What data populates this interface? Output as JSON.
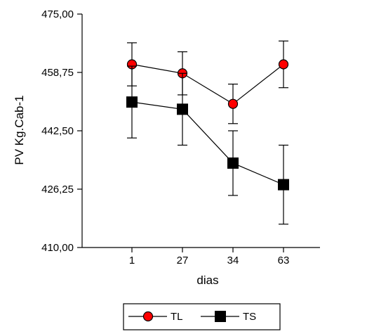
{
  "chart_data": {
    "type": "line",
    "title": "",
    "xlabel": "dias",
    "ylabel": "PV Kg.Cab-1",
    "categories": [
      "1",
      "27",
      "34",
      "63"
    ],
    "yticks": [
      "410,00",
      "426,25",
      "442,50",
      "458,75",
      "475,00"
    ],
    "ylim": [
      410,
      475
    ],
    "grid": false,
    "legend_position": "bottom",
    "series": [
      {
        "name": "TL",
        "marker": "circle",
        "color": "#ff0000",
        "values": [
          461.0,
          458.5,
          450.0,
          461.0
        ],
        "error": [
          6.0,
          6.0,
          5.5,
          6.5
        ]
      },
      {
        "name": "TS",
        "marker": "square",
        "color": "#000000",
        "values": [
          450.5,
          448.5,
          433.5,
          427.5
        ],
        "error": [
          10.0,
          10.0,
          9.0,
          11.0
        ]
      }
    ]
  }
}
